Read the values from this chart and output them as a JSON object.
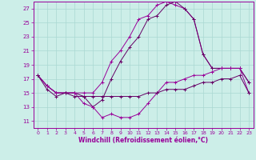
{
  "xlabel": "Windchill (Refroidissement éolien,°C)",
  "xlim": [
    0,
    23
  ],
  "ylim": [
    10,
    28
  ],
  "yticks": [
    11,
    13,
    15,
    17,
    19,
    21,
    23,
    25,
    27
  ],
  "xticks": [
    0,
    1,
    2,
    3,
    4,
    5,
    6,
    7,
    8,
    9,
    10,
    11,
    12,
    13,
    14,
    15,
    16,
    17,
    18,
    19,
    20,
    21,
    22,
    23
  ],
  "background_color": "#cceee8",
  "grid_color": "#aad8d2",
  "line_color1": "#990099",
  "line_color2": "#660066",
  "curve1": [
    17.5,
    16.0,
    15.0,
    15.0,
    15.0,
    15.0,
    15.0,
    16.5,
    19.5,
    21.0,
    23.0,
    25.5,
    26.0,
    27.5,
    28.0,
    27.5,
    27.0,
    25.5,
    20.5,
    18.5,
    18.5,
    18.5,
    18.5,
    16.5
  ],
  "curve2": [
    17.5,
    16.0,
    15.0,
    15.0,
    15.0,
    14.5,
    13.0,
    14.0,
    17.0,
    19.5,
    21.5,
    23.0,
    25.5,
    26.0,
    27.5,
    28.0,
    27.0,
    25.5,
    20.5,
    18.5,
    18.5,
    18.5,
    18.5,
    16.5
  ],
  "curve3": [
    17.5,
    16.0,
    15.0,
    15.0,
    15.0,
    13.5,
    13.0,
    11.5,
    12.0,
    11.5,
    11.5,
    12.0,
    13.5,
    15.0,
    16.5,
    16.5,
    17.0,
    17.5,
    17.5,
    18.0,
    18.5,
    18.5,
    18.5,
    15.0
  ],
  "curve4": [
    17.5,
    15.5,
    14.5,
    15.0,
    14.5,
    14.5,
    14.5,
    14.5,
    14.5,
    14.5,
    14.5,
    14.5,
    15.0,
    15.0,
    15.5,
    15.5,
    15.5,
    16.0,
    16.5,
    16.5,
    17.0,
    17.0,
    17.5,
    15.0
  ]
}
